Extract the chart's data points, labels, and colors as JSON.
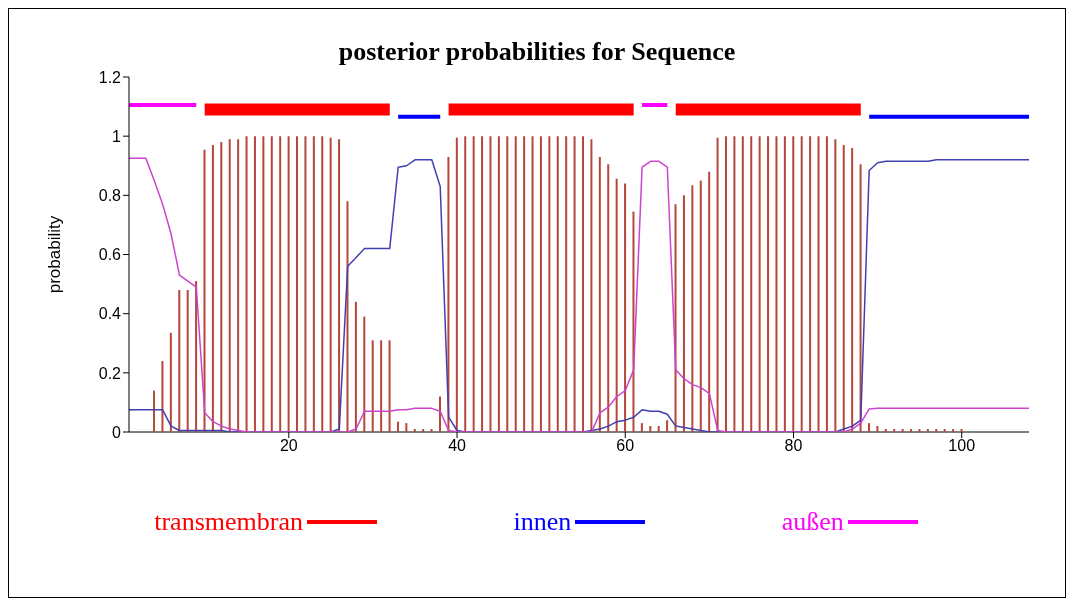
{
  "chart_data": {
    "type": "line",
    "title": "posterior probabilities for Sequence",
    "ylabel": "probability",
    "x": [
      1,
      2,
      3,
      4,
      5,
      6,
      7,
      8,
      9,
      10,
      11,
      12,
      13,
      14,
      15,
      16,
      17,
      18,
      19,
      20,
      21,
      22,
      23,
      24,
      25,
      26,
      27,
      28,
      29,
      30,
      31,
      32,
      33,
      34,
      35,
      36,
      37,
      38,
      39,
      40,
      41,
      42,
      43,
      44,
      45,
      46,
      47,
      48,
      49,
      50,
      51,
      52,
      53,
      54,
      55,
      56,
      57,
      58,
      59,
      60,
      61,
      62,
      63,
      64,
      65,
      66,
      67,
      68,
      69,
      70,
      71,
      72,
      73,
      74,
      75,
      76,
      77,
      78,
      79,
      80,
      81,
      82,
      83,
      84,
      85,
      86,
      87,
      88,
      89,
      90,
      91,
      92,
      93,
      94,
      95,
      96,
      97,
      98,
      99,
      100,
      101,
      102,
      103,
      104,
      105,
      106,
      107,
      108
    ],
    "xlim": [
      1,
      108
    ],
    "xticks": [
      20,
      40,
      60,
      80,
      100
    ],
    "ylim": [
      0,
      1.2
    ],
    "yticks": [
      0,
      0.2,
      0.4,
      0.6,
      0.8,
      1,
      1.2
    ],
    "grid": false,
    "legend": "bottom",
    "series": [
      {
        "name": "transmembran",
        "type": "line",
        "color": "#ff0000",
        "x": [
          10,
          32,
          35,
          39,
          61,
          63,
          66,
          88
        ],
        "values": [
          1.09,
          1.09,
          null,
          1.09,
          1.09,
          null,
          1.09,
          1.09
        ]
      },
      {
        "name": "innen",
        "type": "line",
        "color": "#0000ff",
        "x": [
          33,
          38,
          60,
          89,
          108
        ],
        "values": [
          1.066,
          1.066,
          null,
          1.066,
          1.066
        ]
      },
      {
        "name": "außen",
        "type": "line",
        "color": "#ff00ff",
        "x": [
          1,
          9,
          30,
          62,
          65
        ],
        "values": [
          1.105,
          1.105,
          null,
          1.105,
          1.105
        ]
      },
      {
        "type": "bar",
        "color": "#b5473a",
        "values": [
          0,
          0,
          0,
          0.14,
          0.24,
          0.335,
          0.48,
          0.48,
          0.51,
          0.954,
          0.97,
          0.98,
          0.99,
          0.99,
          1,
          1,
          1,
          1,
          1,
          1,
          1,
          1,
          1,
          1,
          0.995,
          0.99,
          0.78,
          0.44,
          0.39,
          0.31,
          0.31,
          0.31,
          0.035,
          0.03,
          0.01,
          0.01,
          0.01,
          0.12,
          0.93,
          0.995,
          1,
          1,
          1,
          1,
          1,
          1,
          1,
          1,
          1,
          1,
          1,
          1,
          1,
          1,
          1,
          0.99,
          0.93,
          0.905,
          0.856,
          0.84,
          0.745,
          0.03,
          0.02,
          0.02,
          0.04,
          0.77,
          0.8,
          0.834,
          0.85,
          0.88,
          0.995,
          1,
          1,
          1,
          1,
          1,
          1,
          1,
          1,
          1,
          1,
          1,
          1,
          1,
          0.99,
          0.97,
          0.96,
          0.905,
          0.03,
          0.02,
          0.01,
          0.01,
          0.01,
          0.01,
          0.01,
          0.01,
          0.01,
          0.01,
          0.01,
          0.01,
          0,
          0,
          0,
          0,
          0,
          0,
          0,
          0
        ]
      },
      {
        "color": "#4040b0",
        "values": [
          0.075,
          0.075,
          0.075,
          0.075,
          0.075,
          0.02,
          0.005,
          0.005,
          0.005,
          0.005,
          0.005,
          0.005,
          0,
          0,
          0,
          0,
          0,
          0,
          0,
          0,
          0,
          0,
          0,
          0,
          0,
          0.01,
          0.56,
          0.59,
          0.62,
          0.62,
          0.62,
          0.62,
          0.895,
          0.9,
          0.92,
          0.92,
          0.92,
          0.83,
          0.05,
          0.005,
          0,
          0,
          0,
          0,
          0,
          0,
          0,
          0,
          0,
          0,
          0,
          0,
          0,
          0,
          0,
          0.005,
          0.01,
          0.02,
          0.035,
          0.04,
          0.05,
          0.075,
          0.07,
          0.07,
          0.06,
          0.02,
          0.015,
          0.01,
          0.005,
          0,
          0,
          0,
          0,
          0,
          0,
          0,
          0,
          0,
          0,
          0,
          0,
          0,
          0,
          0,
          0,
          0.01,
          0.02,
          0.04,
          0.884,
          0.91,
          0.915,
          0.915,
          0.915,
          0.915,
          0.915,
          0.915,
          0.92,
          0.92,
          0.92,
          0.92,
          0.92,
          0.92,
          0.92,
          0.92,
          0.92,
          0.92,
          0.92,
          0.92
        ]
      },
      {
        "color": "#cc44cc",
        "values": [
          0.925,
          0.925,
          0.925,
          0.85,
          0.77,
          0.67,
          0.53,
          0.51,
          0.49,
          0.065,
          0.035,
          0.02,
          0.01,
          0.005,
          0,
          0,
          0,
          0,
          0,
          0,
          0,
          0,
          0,
          0,
          0,
          0,
          0,
          0.01,
          0.07,
          0.07,
          0.07,
          0.07,
          0.075,
          0.075,
          0.08,
          0.08,
          0.08,
          0.07,
          0.005,
          0,
          0,
          0,
          0,
          0,
          0,
          0,
          0,
          0,
          0,
          0,
          0,
          0,
          0,
          0,
          0,
          0,
          0.065,
          0.085,
          0.12,
          0.14,
          0.21,
          0.895,
          0.915,
          0.915,
          0.895,
          0.21,
          0.18,
          0.16,
          0.15,
          0.13,
          0.005,
          0,
          0,
          0,
          0,
          0,
          0,
          0,
          0,
          0,
          0,
          0,
          0,
          0,
          0,
          0,
          0.01,
          0.03,
          0.078,
          0.08,
          0.08,
          0.08,
          0.08,
          0.08,
          0.08,
          0.08,
          0.08,
          0.08,
          0.08,
          0.08,
          0.08,
          0.08,
          0.08,
          0.08,
          0.08,
          0.08,
          0.08,
          0.08
        ]
      }
    ]
  }
}
